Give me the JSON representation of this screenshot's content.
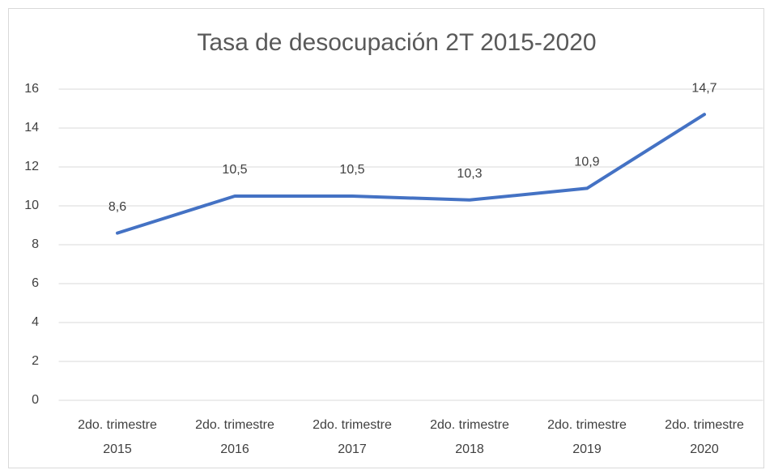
{
  "chart_data": {
    "type": "line",
    "title": "Tasa de desocupación 2T 2015-2020",
    "categories": [
      "2do. trimestre 2015",
      "2do. trimestre 2016",
      "2do. trimestre 2017",
      "2do. trimestre 2018",
      "2do. trimestre 2019",
      "2do. trimestre 2020"
    ],
    "values": [
      8.6,
      10.5,
      10.5,
      10.3,
      10.9,
      14.7
    ],
    "value_labels": [
      "8,6",
      "10,5",
      "10,5",
      "10,3",
      "10,9",
      "14,7"
    ],
    "color": "#4472c4",
    "ylim": [
      0,
      16
    ],
    "yticks": [
      0,
      2,
      4,
      6,
      8,
      10,
      12,
      14,
      16
    ],
    "grid": true
  }
}
